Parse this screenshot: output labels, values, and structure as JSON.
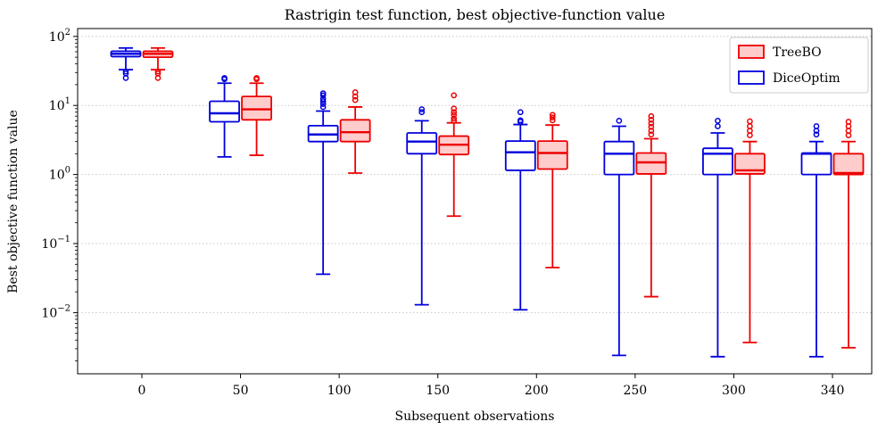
{
  "chart_data": {
    "type": "boxplot",
    "title": "Rastrigin test function, best objective-function value",
    "xlabel": "Subsequent observations",
    "ylabel": "Best objective function value",
    "yscale": "log",
    "ylim": [
      0.0013,
      130
    ],
    "grid": "y-dotted",
    "legend_placement": "top-right",
    "categories": [
      "0",
      "50",
      "100",
      "150",
      "200",
      "250",
      "300",
      "340"
    ],
    "ytick_labels": [
      {
        "value": 0.01,
        "base": "10",
        "exp": "−2"
      },
      {
        "value": 0.1,
        "base": "10",
        "exp": "−1"
      },
      {
        "value": 1,
        "base": "10",
        "exp": "0"
      },
      {
        "value": 10,
        "base": "10",
        "exp": "1"
      },
      {
        "value": 100,
        "base": "10",
        "exp": "2"
      }
    ],
    "series": [
      {
        "name": "TreeBO",
        "color": "#ee0000",
        "fill": "#ffcccc",
        "boxes": [
          {
            "whislo": 33,
            "q1": 50,
            "med": 56,
            "q3": 61,
            "whishi": 68,
            "fliers": [
              25,
              29,
              31
            ]
          },
          {
            "whislo": 1.9,
            "q1": 6.2,
            "med": 8.8,
            "q3": 13.5,
            "whishi": 21,
            "fliers": [
              24,
              25
            ]
          },
          {
            "whislo": 1.05,
            "q1": 3.0,
            "med": 4.1,
            "q3": 6.2,
            "whishi": 9.5,
            "fliers": [
              12,
              13.5,
              15.5
            ]
          },
          {
            "whislo": 0.25,
            "q1": 1.95,
            "med": 2.7,
            "q3": 3.6,
            "whishi": 5.6,
            "fliers": [
              6.0,
              6.5,
              7.3,
              8.0,
              9.0,
              14.0
            ]
          },
          {
            "whislo": 0.045,
            "q1": 1.2,
            "med": 2.05,
            "q3": 3.05,
            "whishi": 5.2,
            "fliers": [
              6.1,
              6.7,
              7.3
            ]
          },
          {
            "whislo": 0.017,
            "q1": 1.02,
            "med": 1.5,
            "q3": 2.05,
            "whishi": 3.3,
            "fliers": [
              3.8,
              4.3,
              4.9,
              5.5,
              6.2,
              7.0
            ]
          },
          {
            "whislo": 0.0037,
            "q1": 1.02,
            "med": 1.15,
            "q3": 2.0,
            "whishi": 3.0,
            "fliers": [
              3.7,
              4.3,
              5.0,
              5.9
            ]
          },
          {
            "whislo": 0.0031,
            "q1": 1.0,
            "med": 1.05,
            "q3": 2.0,
            "whishi": 3.0,
            "fliers": [
              3.7,
              4.3,
              5.0,
              5.8
            ]
          }
        ]
      },
      {
        "name": "DiceOptim",
        "color": "#0000dd",
        "fill": "#ffffff",
        "boxes": [
          {
            "whislo": 33,
            "q1": 51,
            "med": 56,
            "q3": 61,
            "whishi": 68,
            "fliers": [
              25,
              29,
              31
            ]
          },
          {
            "whislo": 1.8,
            "q1": 5.8,
            "med": 7.7,
            "q3": 11.5,
            "whishi": 21,
            "fliers": [
              24,
              25
            ]
          },
          {
            "whislo": 0.036,
            "q1": 3.0,
            "med": 3.8,
            "q3": 5.1,
            "whishi": 8.3,
            "fliers": [
              9.5,
              10.5,
              11.5,
              12.5,
              14.0,
              15.0
            ]
          },
          {
            "whislo": 0.013,
            "q1": 2.0,
            "med": 3.0,
            "q3": 4.0,
            "whishi": 6.0,
            "fliers": [
              8.0,
              8.8
            ]
          },
          {
            "whislo": 0.011,
            "q1": 1.15,
            "med": 2.1,
            "q3": 3.05,
            "whishi": 5.3,
            "fliers": [
              5.8,
              6.1,
              8.0
            ]
          },
          {
            "whislo": 0.0024,
            "q1": 1.0,
            "med": 2.0,
            "q3": 3.0,
            "whishi": 5.0,
            "fliers": [
              6.0
            ]
          },
          {
            "whislo": 0.0023,
            "q1": 1.0,
            "med": 2.0,
            "q3": 2.4,
            "whishi": 4.0,
            "fliers": [
              5.0,
              6.0
            ]
          },
          {
            "whislo": 0.0023,
            "q1": 1.0,
            "med": 2.0,
            "q3": 2.05,
            "whishi": 3.0,
            "fliers": [
              3.8,
              4.3,
              5.0
            ]
          }
        ]
      }
    ]
  }
}
